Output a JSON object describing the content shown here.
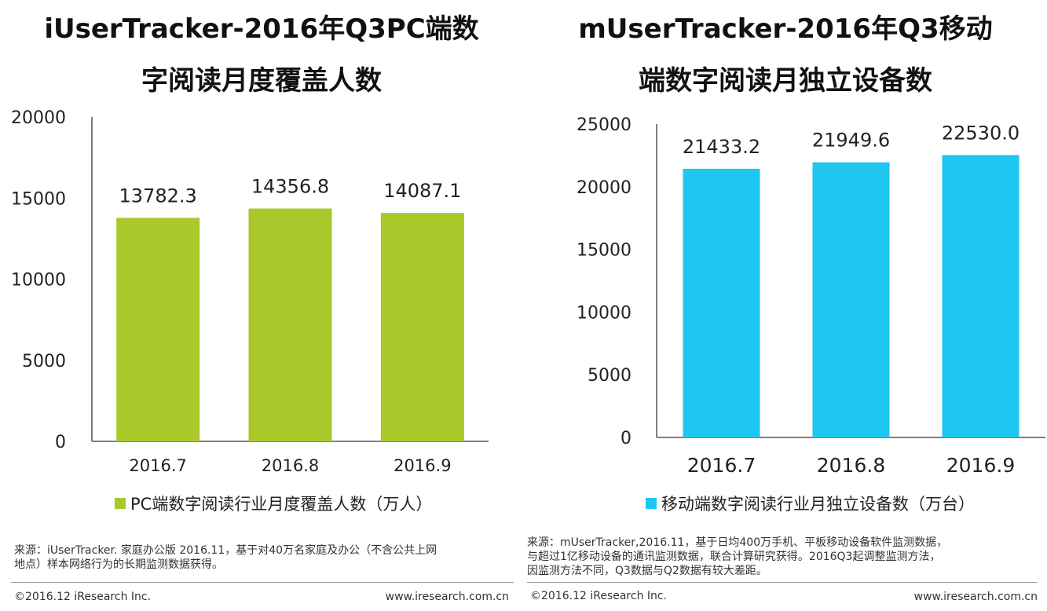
{
  "chart_data": [
    {
      "type": "bar",
      "title_line1": "iUserTracker-2016年Q3PC端数",
      "title_line2": "字阅读月度覆盖人数",
      "categories": [
        "2016.7",
        "2016.8",
        "2016.9"
      ],
      "values": [
        13782.3,
        14356.8,
        14087.1
      ],
      "value_labels": [
        "13782.3",
        "14356.8",
        "14087.1"
      ],
      "ylim": [
        0,
        20000
      ],
      "yticks": [
        "0",
        "5000",
        "10000",
        "15000",
        "20000"
      ],
      "ytick_values": [
        0,
        5000,
        10000,
        15000,
        20000
      ],
      "legend": "PC端数字阅读行业月度覆盖人数（万人）",
      "color": "#A9C92B",
      "grid": false
    },
    {
      "type": "bar",
      "title_line1": "mUserTracker-2016年Q3移动",
      "title_line2": "端数字阅读月独立设备数",
      "categories": [
        "2016.7",
        "2016.8",
        "2016.9"
      ],
      "values": [
        21433.2,
        21949.6,
        22530.0
      ],
      "value_labels": [
        "21433.2",
        "21949.6",
        "22530.0"
      ],
      "ylim": [
        0,
        25000
      ],
      "yticks": [
        "0",
        "5000",
        "10000",
        "15000",
        "20000",
        "25000"
      ],
      "ytick_values": [
        0,
        5000,
        10000,
        15000,
        20000,
        25000
      ],
      "legend": "移动端数字阅读行业月独立设备数（万台）",
      "color": "#1EC6F0",
      "grid": false
    }
  ],
  "left_source": {
    "line1": "来源：iUserTracker. 家庭办公版 2016.11，基于对40万名家庭及办公（不含公共上网",
    "line2": "地点）样本网络行为的长期监测数据获得。"
  },
  "right_source": {
    "line1": "来源：mUserTracker,2016.11，基于日均400万手机、平板移动设备软件监测数据，",
    "line2": "与超过1亿移动设备的通讯监测数据，联合计算研究获得。2016Q3起调整监测方法，",
    "line3": "因监测方法不同，Q3数据与Q2数据有较大差距。"
  },
  "footer": {
    "copyright": "©2016.12 iResearch Inc.",
    "website": "www.iresearch.com.cn"
  }
}
